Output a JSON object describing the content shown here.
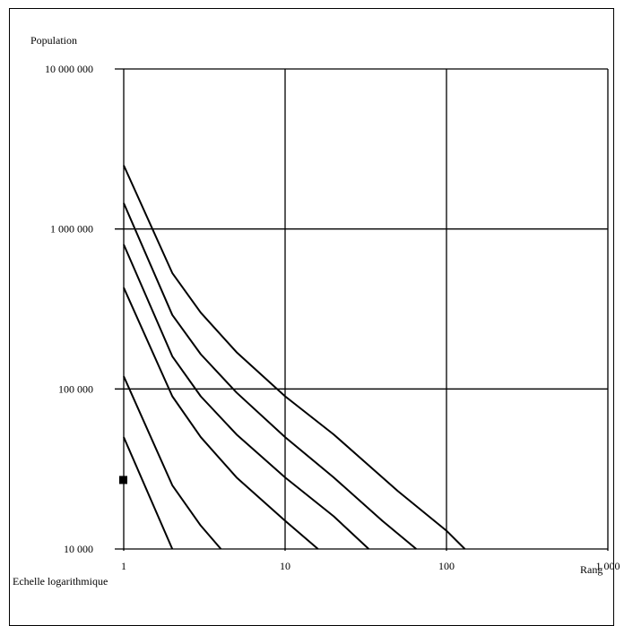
{
  "chart_data": {
    "type": "line",
    "title": "",
    "ylabel": "Population",
    "xlabel": "Rang",
    "note": "Echelle logarithmique",
    "xscale": "log",
    "yscale": "log",
    "xlim": [
      1,
      1000
    ],
    "ylim": [
      10000,
      10000000
    ],
    "grid": true,
    "x_ticks": [
      {
        "value": 1,
        "label": "1"
      },
      {
        "value": 10,
        "label": "10"
      },
      {
        "value": 100,
        "label": "100"
      },
      {
        "value": 1000,
        "label": "1 000"
      }
    ],
    "y_ticks": [
      {
        "value": 10000,
        "label": "10 000"
      },
      {
        "value": 100000,
        "label": "100 000"
      },
      {
        "value": 1000000,
        "label": "1 000 000"
      },
      {
        "value": 10000000,
        "label": "10 000 000"
      }
    ],
    "series": [
      {
        "x": [
          1,
          2,
          3,
          5,
          10,
          20,
          50,
          100,
          130
        ],
        "y": [
          2500000,
          530000,
          300000,
          170000,
          90000,
          52000,
          23000,
          13000,
          10000
        ]
      },
      {
        "x": [
          1,
          2,
          3,
          5,
          10,
          20,
          40,
          65
        ],
        "y": [
          1450000,
          290000,
          165000,
          95000,
          50000,
          28000,
          15000,
          10000
        ]
      },
      {
        "x": [
          1,
          2,
          3,
          5,
          10,
          20,
          33
        ],
        "y": [
          800000,
          160000,
          90000,
          52000,
          28000,
          16000,
          10000
        ]
      },
      {
        "x": [
          1,
          2,
          3,
          5,
          10,
          16
        ],
        "y": [
          430000,
          90000,
          50000,
          28000,
          15000,
          10000
        ]
      },
      {
        "x": [
          1,
          2,
          3,
          4
        ],
        "y": [
          120000,
          25000,
          14000,
          10000
        ]
      },
      {
        "x": [
          1,
          2
        ],
        "y": [
          50000,
          10000
        ]
      }
    ],
    "markers": [
      {
        "x": 1,
        "y": 27000,
        "shape": "square"
      }
    ]
  }
}
